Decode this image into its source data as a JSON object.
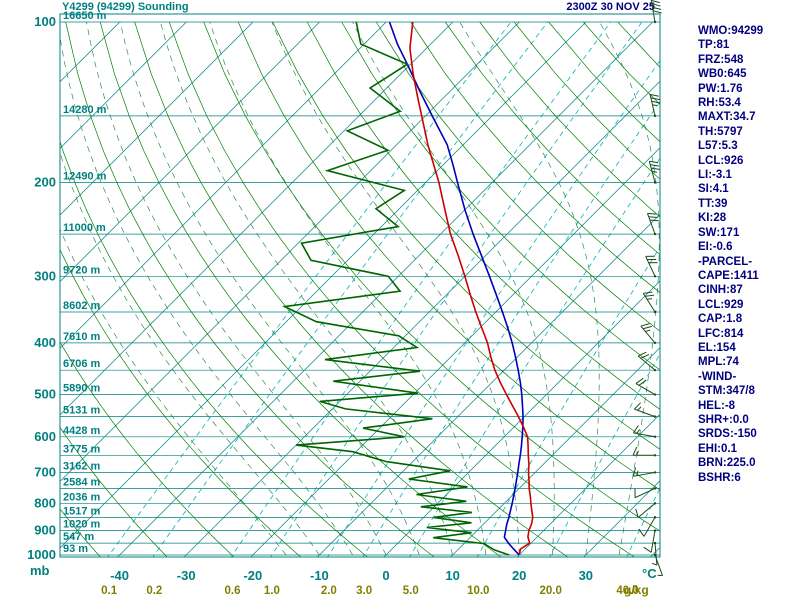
{
  "header": {
    "title": "Y4299 (94299) Sounding",
    "datetime": "2300Z 30 NOV 25"
  },
  "axes": {
    "pressure_unit": "mb",
    "temp_unit": "°C",
    "mixing_unit": "g/kg",
    "pressure_ticks": [
      100,
      200,
      300,
      400,
      500,
      600,
      700,
      800,
      900,
      1000
    ],
    "temp_ticks": [
      -40,
      -30,
      -20,
      -10,
      0,
      10,
      20,
      30
    ],
    "height_levels": [
      [
        100,
        "16650 m"
      ],
      [
        150,
        "14280 m"
      ],
      [
        200,
        "12490 m"
      ],
      [
        250,
        "11000 m"
      ],
      [
        300,
        "9720 m"
      ],
      [
        350,
        "8602 m"
      ],
      [
        400,
        "7610 m"
      ],
      [
        450,
        "6706 m"
      ],
      [
        500,
        "5890 m"
      ],
      [
        550,
        "5131 m"
      ],
      [
        600,
        "4428 m"
      ],
      [
        650,
        "3775 m"
      ],
      [
        700,
        "3162 m"
      ],
      [
        750,
        "2584 m"
      ],
      [
        800,
        "2036 m"
      ],
      [
        850,
        "1517 m"
      ],
      [
        900,
        "1020 m"
      ],
      [
        950,
        "547 m"
      ],
      [
        1000,
        "93 m"
      ]
    ]
  },
  "chart_data": {
    "type": "line",
    "subtype": "skew-t-log-p-sounding",
    "title": "Y4299 (94299) Sounding",
    "xlabel": "Temperature (°C)",
    "ylabel": "Pressure (mb)",
    "x_range": [
      -40,
      40
    ],
    "p_range": [
      100,
      1000
    ],
    "p_scale": "log",
    "grid": true,
    "colors": {
      "isotherm": "#008080",
      "dry_adiabat": "#008000",
      "moist_adiabat": "#2e8b57",
      "mixing_ratio": "#00b2b2",
      "temperature": "#cc0000",
      "dewpoint": "#006400",
      "parcel": "#0000bb",
      "wind": "#1c4a1c",
      "axis_label": "#008080",
      "mixing_label": "#808000"
    },
    "background": {
      "isotherms_C": {
        "min": -120,
        "max": 40,
        "step": 10
      },
      "dry_adiabats_K": [
        230,
        240,
        250,
        260,
        270,
        280,
        290,
        300,
        310,
        320,
        330,
        340,
        350,
        360,
        370,
        380,
        390,
        400,
        410,
        420,
        430,
        440
      ],
      "moist_adiabats_startC": [
        -15,
        -10,
        -5,
        0,
        5,
        10,
        15,
        20,
        25,
        30,
        35
      ],
      "mixing_ratios_gkg": [
        0.1,
        0.2,
        0.6,
        1.0,
        2.0,
        3.0,
        5.0,
        10.0,
        20.0,
        40.0
      ]
    },
    "series": [
      {
        "name": "temperature",
        "points": [
          [
            1000,
            20.0
          ],
          [
            975,
            19.3
          ],
          [
            950,
            19.8
          ],
          [
            925,
            18.6
          ],
          [
            900,
            17.8
          ],
          [
            875,
            17.2
          ],
          [
            850,
            16.4
          ],
          [
            825,
            15.2
          ],
          [
            800,
            14.0
          ],
          [
            775,
            12.8
          ],
          [
            750,
            11.5
          ],
          [
            725,
            10.3
          ],
          [
            700,
            9.0
          ],
          [
            675,
            7.8
          ],
          [
            650,
            6.4
          ],
          [
            625,
            5.0
          ],
          [
            600,
            3.5
          ],
          [
            575,
            1.4
          ],
          [
            550,
            -0.9
          ],
          [
            525,
            -3.4
          ],
          [
            500,
            -6.0
          ],
          [
            475,
            -8.7
          ],
          [
            450,
            -11.4
          ],
          [
            425,
            -14.0
          ],
          [
            400,
            -16.6
          ],
          [
            375,
            -19.7
          ],
          [
            350,
            -23.0
          ],
          [
            325,
            -26.4
          ],
          [
            300,
            -30.0
          ],
          [
            275,
            -34.0
          ],
          [
            250,
            -38.5
          ],
          [
            225,
            -43.0
          ],
          [
            200,
            -48.0
          ],
          [
            185,
            -51.5
          ],
          [
            170,
            -55.3
          ],
          [
            155,
            -59.2
          ],
          [
            140,
            -63.5
          ],
          [
            125,
            -68.2
          ],
          [
            112,
            -72.5
          ],
          [
            100,
            -76.0
          ]
        ]
      },
      {
        "name": "dewpoint",
        "points": [
          [
            1000,
            18.5
          ],
          [
            978,
            15.5
          ],
          [
            952,
            13.0
          ],
          [
            928,
            4.5
          ],
          [
            908,
            9.5
          ],
          [
            888,
            2.0
          ],
          [
            870,
            8.0
          ],
          [
            850,
            1.5
          ],
          [
            832,
            6.5
          ],
          [
            812,
            -2.0
          ],
          [
            793,
            4.0
          ],
          [
            770,
            -4.5
          ],
          [
            745,
            2.0
          ],
          [
            720,
            -8.0
          ],
          [
            695,
            -3.0
          ],
          [
            668,
            -14.0
          ],
          [
            640,
            -20.5
          ],
          [
            622,
            -30.0
          ],
          [
            600,
            -15.0
          ],
          [
            578,
            -22.5
          ],
          [
            555,
            -13.5
          ],
          [
            532,
            -28.0
          ],
          [
            515,
            -33.0
          ],
          [
            497,
            -19.5
          ],
          [
            472,
            -34.0
          ],
          [
            452,
            -22.5
          ],
          [
            430,
            -38.5
          ],
          [
            408,
            -26.5
          ],
          [
            388,
            -31.0
          ],
          [
            365,
            -45.5
          ],
          [
            342,
            -52.5
          ],
          [
            320,
            -37.5
          ],
          [
            300,
            -41.5
          ],
          [
            280,
            -55.5
          ],
          [
            260,
            -59.5
          ],
          [
            242,
            -47.5
          ],
          [
            224,
            -53.5
          ],
          [
            207,
            -52.0
          ],
          [
            190,
            -66.5
          ],
          [
            174,
            -60.5
          ],
          [
            160,
            -69.5
          ],
          [
            147,
            -64.5
          ],
          [
            133,
            -72.5
          ],
          [
            120,
            -70.5
          ],
          [
            110,
            -80.5
          ],
          [
            100,
            -84.5
          ]
        ]
      },
      {
        "name": "parcel",
        "points": [
          [
            1000,
            20.0
          ],
          [
            975,
            18.3
          ],
          [
            950,
            16.6
          ],
          [
            926,
            15.1
          ],
          [
            900,
            14.3
          ],
          [
            875,
            13.5
          ],
          [
            850,
            12.8
          ],
          [
            825,
            12.0
          ],
          [
            800,
            11.2
          ],
          [
            775,
            10.3
          ],
          [
            750,
            9.4
          ],
          [
            725,
            8.4
          ],
          [
            700,
            7.4
          ],
          [
            675,
            6.3
          ],
          [
            650,
            5.2
          ],
          [
            625,
            4.0
          ],
          [
            600,
            2.7
          ],
          [
            575,
            1.3
          ],
          [
            550,
            -0.2
          ],
          [
            525,
            -1.9
          ],
          [
            500,
            -3.7
          ],
          [
            475,
            -5.7
          ],
          [
            450,
            -7.9
          ],
          [
            425,
            -10.3
          ],
          [
            400,
            -12.9
          ],
          [
            375,
            -15.8
          ],
          [
            350,
            -19.0
          ],
          [
            325,
            -22.5
          ],
          [
            300,
            -26.3
          ],
          [
            275,
            -30.5
          ],
          [
            250,
            -35.1
          ],
          [
            225,
            -40.0
          ],
          [
            200,
            -45.2
          ],
          [
            185,
            -48.6
          ],
          [
            170,
            -52.4
          ],
          [
            150,
            -59.0
          ],
          [
            135,
            -64.5
          ],
          [
            120,
            -70.5
          ],
          [
            110,
            -75.0
          ],
          [
            100,
            -79.5
          ]
        ]
      }
    ],
    "winds": [
      [
        1000,
        160,
        5
      ],
      [
        950,
        175,
        8
      ],
      [
        900,
        190,
        10
      ],
      [
        850,
        210,
        10
      ],
      [
        800,
        230,
        12
      ],
      [
        750,
        245,
        12
      ],
      [
        700,
        260,
        15
      ],
      [
        650,
        270,
        15
      ],
      [
        600,
        280,
        18
      ],
      [
        550,
        290,
        18
      ],
      [
        500,
        300,
        20
      ],
      [
        450,
        310,
        20
      ],
      [
        400,
        320,
        25
      ],
      [
        350,
        328,
        25
      ],
      [
        300,
        335,
        30
      ],
      [
        250,
        340,
        30
      ],
      [
        200,
        345,
        35
      ],
      [
        150,
        347,
        35
      ],
      [
        100,
        350,
        40
      ]
    ]
  },
  "stats_panel": {
    "lines": [
      "WMO:94299",
      "TP:81",
      "FRZ:548",
      "WB0:645",
      "PW:1.76",
      "RH:53.4",
      "MAXT:34.7",
      "TH:5797",
      "L57:5.3",
      "LCL:926",
      "LI:-3.1",
      "SI:4.1",
      "TT:39",
      "KI:28",
      "SW:171",
      "EI:-0.6",
      "-PARCEL-",
      "CAPE:1411",
      "CINH:87",
      "LCL:929",
      "CAP:1.8",
      "LFC:814",
      "EL:154",
      "MPL:74",
      "-WIND-",
      "STM:347/8",
      "HEL:-8",
      "SHR+:0.0",
      "SRDS:-150",
      "EHI:0.1",
      "BRN:225.0",
      "BSHR:6"
    ]
  }
}
